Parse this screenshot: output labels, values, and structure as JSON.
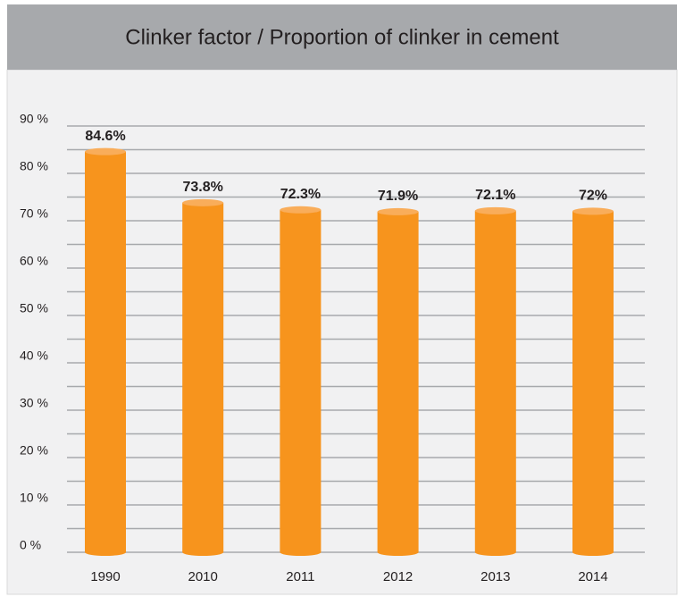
{
  "chart_data": {
    "type": "bar",
    "title": "Clinker factor / Proportion of clinker in cement",
    "categories": [
      "1990",
      "2010",
      "2011",
      "2012",
      "2013",
      "2014"
    ],
    "values": [
      84.6,
      73.8,
      72.3,
      71.9,
      72.1,
      72
    ],
    "value_labels": [
      "84.6%",
      "73.8%",
      "72.3%",
      "71.9%",
      "72.1%",
      "72%"
    ],
    "color": "#f7941d",
    "ylim": [
      0,
      90
    ],
    "yticks": [
      {
        "value": 0,
        "label": "0 %"
      },
      {
        "value": 10,
        "label": "10 %"
      },
      {
        "value": 20,
        "label": "20 %"
      },
      {
        "value": 30,
        "label": "30 %"
      },
      {
        "value": 40,
        "label": "40 %"
      },
      {
        "value": 50,
        "label": "50 %"
      },
      {
        "value": 60,
        "label": "60 %"
      },
      {
        "value": 70,
        "label": "70 %"
      },
      {
        "value": 80,
        "label": "80 %"
      },
      {
        "value": 90,
        "label": "90 %"
      }
    ],
    "yminorticks": [
      5,
      15,
      25,
      35,
      45,
      55,
      65,
      75,
      85
    ],
    "grid": true
  }
}
